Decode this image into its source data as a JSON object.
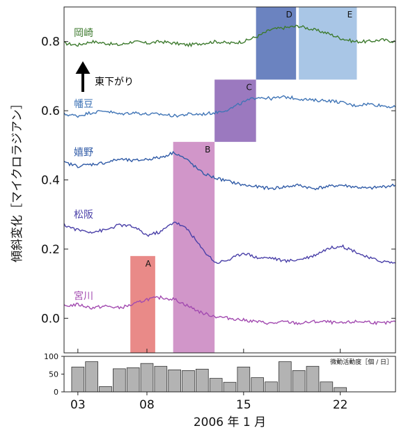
{
  "chart_data": [
    {
      "type": "line",
      "ylabel": "傾斜変化［マイクロラジアン］",
      "xlabel": "2006 年 1 月",
      "xlim": [
        2,
        26
      ],
      "ylim": [
        -0.1,
        0.9
      ],
      "y_ticks": [
        "0.0",
        "0.2",
        "0.4",
        "0.6",
        "0.8"
      ],
      "x_ticks": [
        "03",
        "08",
        "15",
        "22"
      ],
      "annotation": "東下がり",
      "series": [
        {
          "name": "岡崎",
          "color": "#3d7a2e",
          "x": [
            2,
            3,
            4,
            5,
            6,
            7,
            8,
            9,
            10,
            11,
            12,
            13,
            14,
            15,
            16,
            17,
            18,
            19,
            20,
            21,
            22,
            23,
            24,
            25,
            26
          ],
          "y": [
            0.795,
            0.79,
            0.8,
            0.795,
            0.79,
            0.8,
            0.795,
            0.8,
            0.795,
            0.79,
            0.795,
            0.8,
            0.795,
            0.8,
            0.815,
            0.835,
            0.84,
            0.845,
            0.835,
            0.825,
            0.81,
            0.8,
            0.8,
            0.805,
            0.8
          ]
        },
        {
          "name": "幡豆",
          "color": "#3f74b6",
          "x": [
            2,
            3,
            4,
            5,
            6,
            7,
            8,
            9,
            10,
            11,
            12,
            13,
            14,
            15,
            16,
            17,
            18,
            19,
            20,
            21,
            22,
            23,
            24,
            25,
            26
          ],
          "y": [
            0.59,
            0.585,
            0.595,
            0.6,
            0.59,
            0.595,
            0.59,
            0.59,
            0.585,
            0.59,
            0.59,
            0.595,
            0.605,
            0.625,
            0.64,
            0.635,
            0.64,
            0.635,
            0.63,
            0.63,
            0.625,
            0.615,
            0.62,
            0.615,
            0.61
          ]
        },
        {
          "name": "嬉野",
          "color": "#2f5aa6",
          "x": [
            2,
            3,
            4,
            5,
            6,
            7,
            8,
            9,
            10,
            11,
            12,
            13,
            14,
            15,
            16,
            17,
            18,
            19,
            20,
            21,
            22,
            23,
            24,
            25,
            26
          ],
          "y": [
            0.45,
            0.44,
            0.445,
            0.45,
            0.46,
            0.455,
            0.46,
            0.465,
            0.48,
            0.455,
            0.42,
            0.405,
            0.395,
            0.385,
            0.38,
            0.375,
            0.38,
            0.385,
            0.375,
            0.38,
            0.385,
            0.38,
            0.375,
            0.38,
            0.385
          ]
        },
        {
          "name": "松阪",
          "color": "#4a40a8",
          "x": [
            2,
            3,
            4,
            5,
            6,
            7,
            8,
            9,
            10,
            11,
            12,
            13,
            14,
            15,
            16,
            17,
            18,
            19,
            20,
            21,
            22,
            23,
            24,
            25,
            26
          ],
          "y": [
            0.27,
            0.255,
            0.25,
            0.255,
            0.27,
            0.265,
            0.24,
            0.25,
            0.28,
            0.255,
            0.2,
            0.16,
            0.17,
            0.19,
            0.175,
            0.175,
            0.165,
            0.17,
            0.18,
            0.2,
            0.21,
            0.195,
            0.175,
            0.165,
            0.16
          ]
        },
        {
          "name": "宮川",
          "color": "#a24ab0",
          "x": [
            2,
            3,
            4,
            5,
            6,
            7,
            8,
            9,
            10,
            11,
            12,
            13,
            14,
            15,
            16,
            17,
            18,
            19,
            20,
            21,
            22,
            23,
            24,
            25,
            26
          ],
          "y": [
            0.035,
            0.04,
            0.03,
            0.035,
            0.03,
            0.04,
            0.055,
            0.06,
            0.055,
            0.035,
            0.015,
            0.005,
            0.0,
            -0.005,
            -0.01,
            -0.015,
            -0.01,
            -0.015,
            -0.01,
            -0.01,
            -0.015,
            -0.01,
            -0.01,
            -0.015,
            -0.01
          ]
        }
      ],
      "highlights": [
        {
          "label": "A",
          "x0": 6.8,
          "x1": 8.6,
          "y0": -0.1,
          "y1": 0.18,
          "color": "#e98a88"
        },
        {
          "label": "B",
          "x0": 9.9,
          "x1": 12.9,
          "y0": -0.1,
          "y1": 0.51,
          "color": "#d196c9"
        },
        {
          "label": "C",
          "x0": 12.9,
          "x1": 15.9,
          "y0": 0.51,
          "y1": 0.69,
          "color": "#9b79bf"
        },
        {
          "label": "D",
          "x0": 15.9,
          "x1": 18.8,
          "y0": 0.69,
          "y1": 0.9,
          "color": "#6b83c0"
        },
        {
          "label": "E",
          "x0": 19.0,
          "x1": 23.2,
          "y0": 0.69,
          "y1": 0.9,
          "color": "#a9c6e6"
        }
      ]
    },
    {
      "type": "bar",
      "title": "微動活動度［個 / 日］",
      "ylim": [
        0,
        100
      ],
      "y_ticks": [
        "0",
        "50",
        "100"
      ],
      "x_ticks": [
        "03",
        "08",
        "15",
        "22"
      ],
      "categories": [
        "3",
        "4",
        "5",
        "6",
        "7",
        "8",
        "9",
        "10",
        "11",
        "12",
        "13",
        "14",
        "15",
        "16",
        "17",
        "18",
        "19",
        "20",
        "21",
        "22",
        "23",
        "24"
      ],
      "values": [
        70,
        85,
        15,
        65,
        68,
        80,
        72,
        62,
        60,
        64,
        38,
        27,
        70,
        40,
        28,
        85,
        60,
        72,
        28,
        12,
        0,
        0
      ],
      "bar_color": "#b3b3b3"
    }
  ]
}
